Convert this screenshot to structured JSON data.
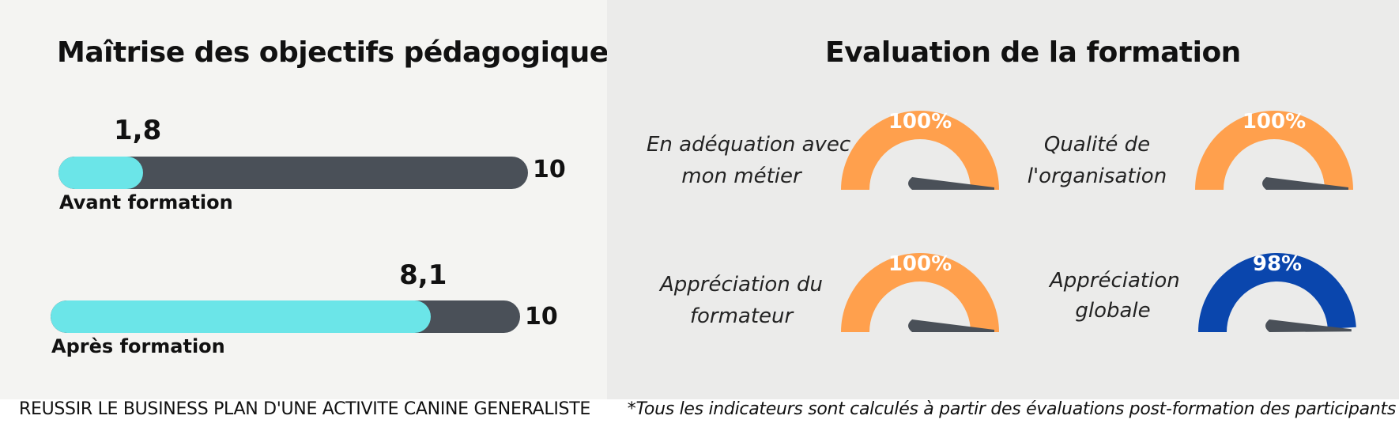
{
  "left_panel": {
    "title": "Maîtrise des objectifs pédagogiques"
  },
  "right_panel": {
    "title": "Evaluation de la formation"
  },
  "chart_data": [
    {
      "type": "bar",
      "title": "Maîtrise des objectifs pédagogiques",
      "orientation": "horizontal",
      "categories": [
        "Avant formation",
        "Après formation"
      ],
      "values": [
        1.8,
        8.1
      ],
      "value_labels": [
        "1,8",
        "8,1"
      ],
      "max": 10,
      "max_label": "10",
      "colors": {
        "fill": "#6be5e8",
        "track": "#4a5058"
      }
    },
    {
      "type": "gauge",
      "title": "Evaluation de la formation",
      "items": [
        {
          "label_lines": [
            "En adéquation avec",
            "mon métier"
          ],
          "value": 100,
          "value_label": "100%",
          "color": "#ffa04d"
        },
        {
          "label_lines": [
            "Qualité de",
            "l'organisation"
          ],
          "value": 100,
          "value_label": "100%",
          "color": "#ffa04d"
        },
        {
          "label_lines": [
            "Appréciation du",
            "formateur"
          ],
          "value": 100,
          "value_label": "100%",
          "color": "#ffa04d"
        },
        {
          "label_lines": [
            "Appréciation",
            "globale"
          ],
          "value": 98,
          "value_label": "98%",
          "color": "#0a46ad"
        }
      ],
      "needle_color": "#4a5058"
    }
  ],
  "footer": {
    "course": "REUSSIR LE BUSINESS PLAN D'UNE ACTIVITE CANINE GENERALISTE",
    "note": "*Tous les indicateurs sont calculés à partir des évaluations post-formation des participants"
  }
}
